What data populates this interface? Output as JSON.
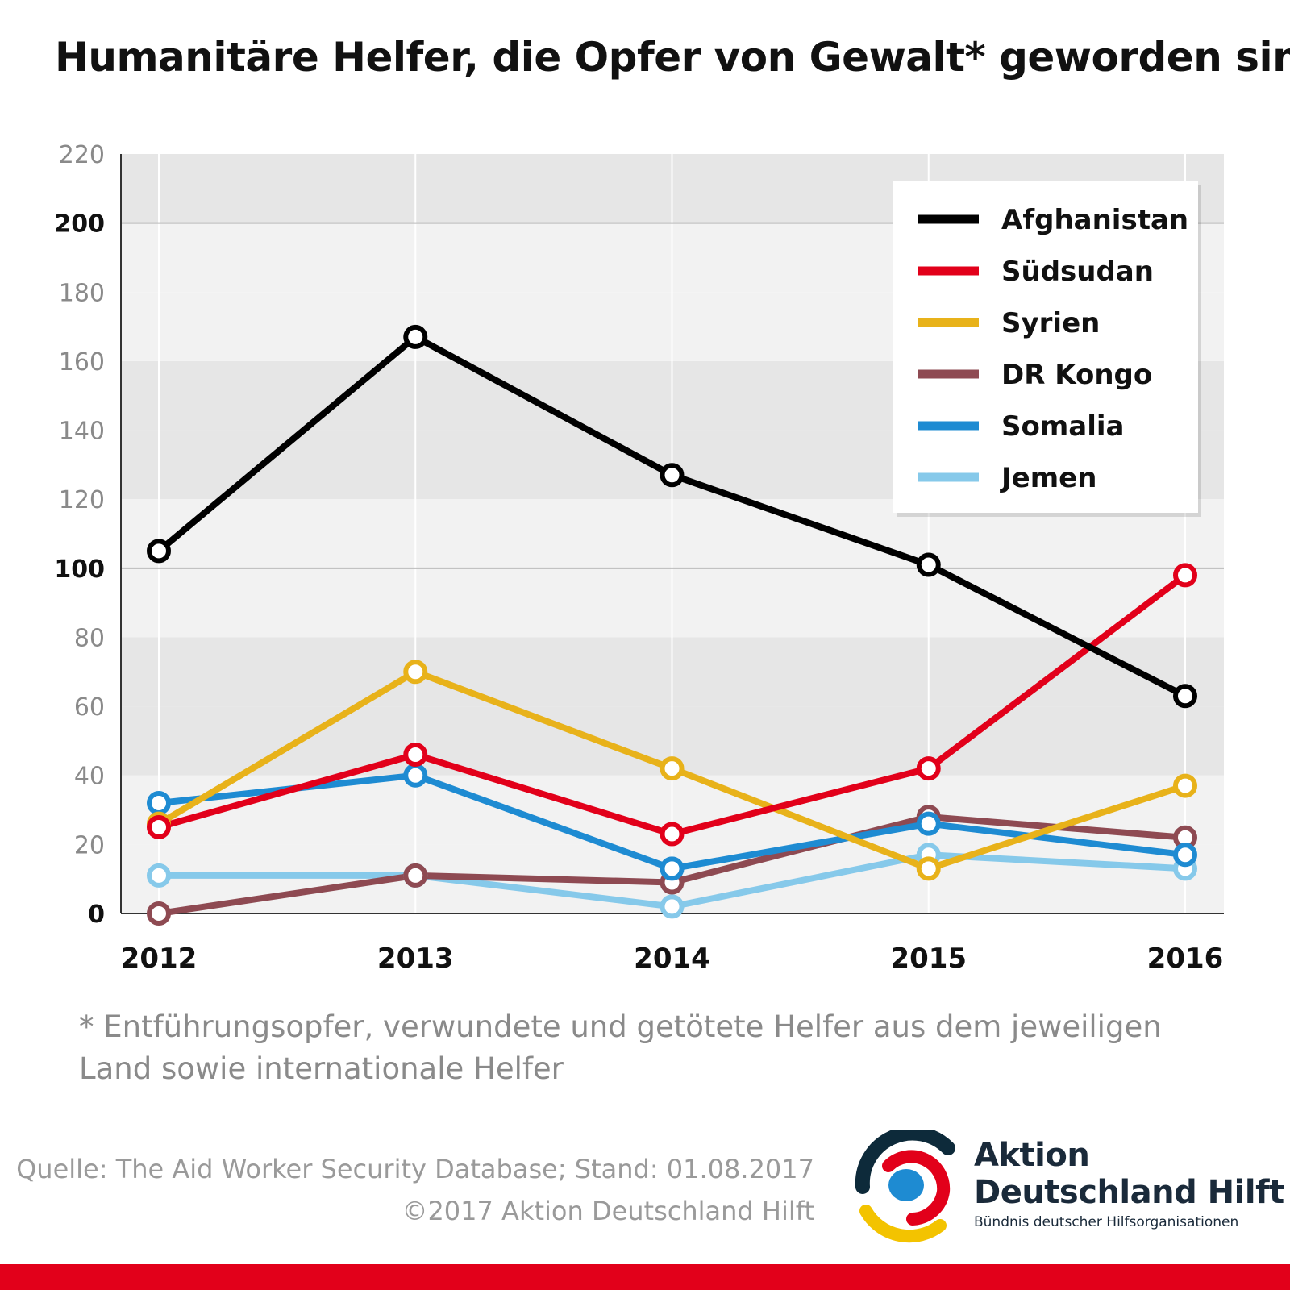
{
  "title": "Humanitäre Helfer, die Opfer von Gewalt* geworden sind",
  "chart_data": {
    "type": "line",
    "x": [
      "2012",
      "2013",
      "2014",
      "2015",
      "2016"
    ],
    "ylim": [
      0,
      220
    ],
    "yticks": [
      "0",
      "20",
      "40",
      "60",
      "80",
      "100",
      "120",
      "140",
      "160",
      "180",
      "200",
      "220"
    ],
    "bold_yticks": [
      "0",
      "100",
      "200"
    ],
    "grid": true,
    "legend_position": "top-right",
    "series": [
      {
        "name": "Afghanistan",
        "color": "#000000",
        "values": [
          105,
          167,
          127,
          101,
          63
        ]
      },
      {
        "name": "Südsudan",
        "color": "#e2001a",
        "values": [
          25,
          46,
          23,
          42,
          98
        ]
      },
      {
        "name": "Syrien",
        "color": "#e8b21a",
        "values": [
          26,
          70,
          42,
          13,
          37
        ]
      },
      {
        "name": "DR Kongo",
        "color": "#8e4a52",
        "values": [
          0,
          11,
          9,
          28,
          22
        ]
      },
      {
        "name": "Somalia",
        "color": "#1e8bd2",
        "values": [
          32,
          40,
          13,
          26,
          17
        ]
      },
      {
        "name": "Jemen",
        "color": "#86c9ea",
        "values": [
          11,
          11,
          2,
          17,
          13
        ]
      }
    ]
  },
  "footnote": "* Entführungsopfer, verwundete und getötete Helfer aus dem jeweiligen Land sowie internationale Helfer",
  "source": {
    "line1": "Quelle: The Aid Worker Security Database; Stand: 01.08.2017",
    "line2": "©2017 Aktion Deutschland Hilft"
  },
  "logo": {
    "line1": "Aktion",
    "line2": "Deutschland Hilft",
    "tagline": "Bündnis deutscher Hilfsorganisationen"
  },
  "colors": {
    "band_light": "#f2f2f2",
    "band_dark": "#e6e6e6",
    "bottom_bar": "#e2001a"
  }
}
